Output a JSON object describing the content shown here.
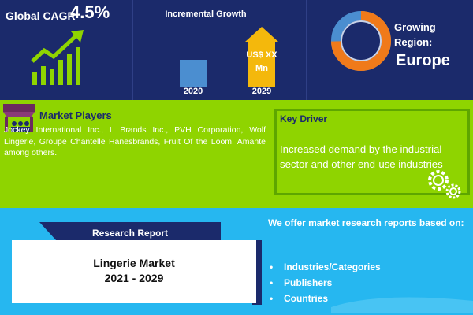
{
  "cagr": {
    "label": "Global CAGR",
    "value": "4.5%",
    "icon": "rising-trend-bars-icon"
  },
  "growth": {
    "title": "Incremental Growth",
    "bar_value": "US$ XX Mn",
    "start_year": "2020",
    "end_year": "2029"
  },
  "region": {
    "label": "Growing Region:",
    "name": "Europe",
    "icon": "donut-ring-icon"
  },
  "market_players": {
    "title": "Market Players",
    "text": "Jockey International Inc., L Brands Inc., PVH Corporation, Wolf Lingerie, Groupe Chantelle Hanesbrands, Fruit Of the Loom, Amante among others.",
    "icon": "storefront-icon"
  },
  "key_driver": {
    "title": "Key Driver",
    "text": "Increased demand by the industrial sector and other end-use industries",
    "icon": "gears-icon"
  },
  "report": {
    "banner": "Research Report",
    "title_line1": "Lingerie Market",
    "title_line2": "2021 - 2029"
  },
  "offer": {
    "title": "We offer market research reports based on:",
    "items": [
      "Industries/Categories",
      "Publishers",
      "Countries"
    ]
  },
  "colors": {
    "navy": "#1b2a6b",
    "green": "#8fd400",
    "sky": "#26b7f0",
    "accent_yellow": "#f4b80c",
    "accent_blue": "#4b8ed0",
    "donut_orange": "#f07a1a"
  }
}
